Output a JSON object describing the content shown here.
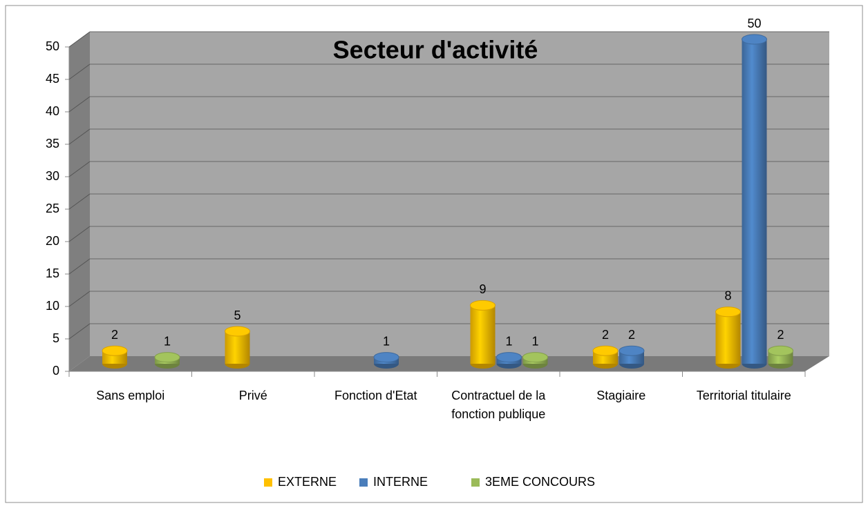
{
  "chart_data": {
    "type": "bar3d",
    "title": "Secteur d'activité",
    "categories": [
      "Sans emploi",
      "Privé",
      "Fonction d'Etat",
      "Contractuel de la fonction publique",
      "Stagiaire",
      "Territorial titulaire"
    ],
    "series": [
      {
        "name": "EXTERNE",
        "color": "#ffc000",
        "values": [
          2,
          5,
          null,
          9,
          2,
          8
        ]
      },
      {
        "name": "INTERNE",
        "color": "#4a7ebb",
        "values": [
          null,
          null,
          1,
          1,
          2,
          50
        ]
      },
      {
        "name": "3EME CONCOURS",
        "color": "#9bbb59",
        "values": [
          1,
          null,
          null,
          1,
          null,
          2
        ]
      }
    ],
    "ylim": [
      0,
      50
    ],
    "yticks": [
      0,
      5,
      10,
      15,
      20,
      25,
      30,
      35,
      40,
      45,
      50
    ],
    "grid": true,
    "legend": "bottom"
  }
}
